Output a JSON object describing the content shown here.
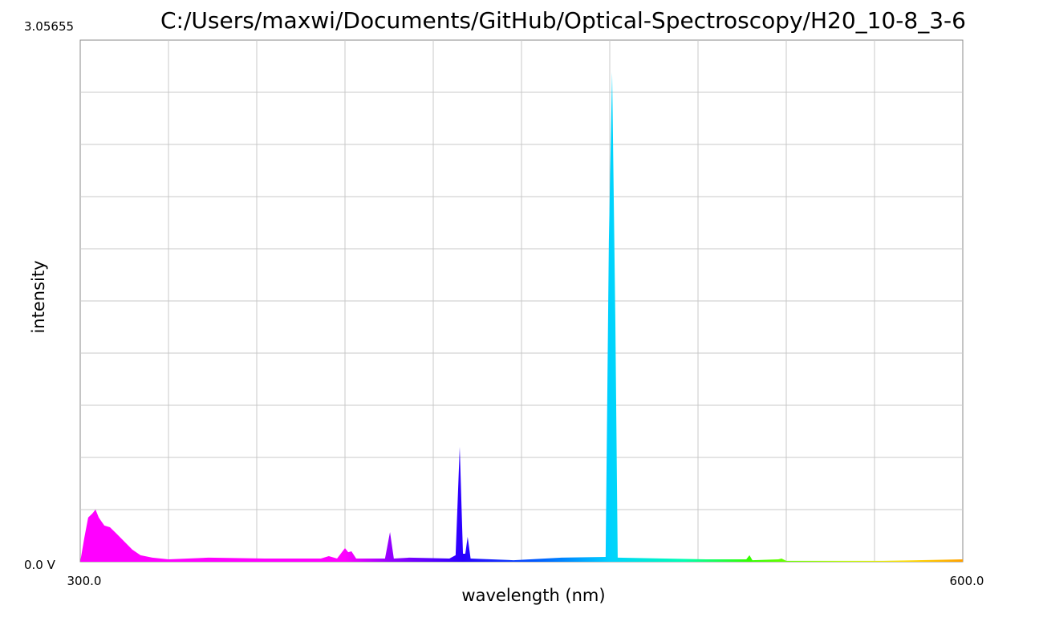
{
  "chart_data": {
    "type": "area",
    "title": "C:/Users/maxwi/Documents/GitHub/Optical-Spectroscopy/H20_10-8_3-6",
    "x_label": "wavelength (nm)",
    "y_label": "intensity",
    "xlim": [
      300,
      600
    ],
    "ylim": [
      0,
      3.05655
    ],
    "xticks": [
      {
        "value": 300,
        "label": "300.0"
      },
      {
        "value": 600,
        "label": "600.0"
      }
    ],
    "yticks": [
      {
        "value": 0,
        "label": "0.0 V"
      },
      {
        "value": 3.05655,
        "label": "3.05655"
      }
    ],
    "xgrid": [
      330,
      360,
      390,
      420,
      450,
      480,
      510,
      540,
      570
    ],
    "ygrid": [
      0.305655,
      0.61131,
      0.916965,
      1.22262,
      1.528275,
      1.83393,
      2.139585,
      2.44524,
      2.750895
    ],
    "grid": true,
    "color": "wavelength",
    "x": [
      300,
      301.4,
      302.7,
      304.1,
      305.2,
      306.3,
      308.2,
      310.1,
      312.3,
      315.0,
      317.7,
      320.5,
      324.5,
      330.0,
      343.6,
      362.7,
      381.8,
      384.5,
      387.3,
      390.0,
      391.1,
      392.2,
      393.8,
      403.6,
      405.3,
      406.6,
      411.8,
      425.5,
      427.6,
      429.0,
      430.1,
      430.9,
      431.7,
      432.7,
      447.3,
      463.6,
      478.6,
      479.7,
      480.8,
      481.9,
      482.7,
      512.7,
      526.4,
      527.5,
      528.5,
      537.3,
      538.4,
      540.0,
      572.7,
      600.0
    ],
    "values": [
      0,
      0.141,
      0.259,
      0.282,
      0.306,
      0.259,
      0.212,
      0.202,
      0.165,
      0.118,
      0.071,
      0.038,
      0.024,
      0.014,
      0.024,
      0.019,
      0.019,
      0.033,
      0.019,
      0.08,
      0.056,
      0.061,
      0.019,
      0.019,
      0.174,
      0.019,
      0.024,
      0.019,
      0.038,
      0.673,
      0.047,
      0.047,
      0.146,
      0.019,
      0.009,
      0.024,
      0.028,
      1.881,
      2.869,
      1.411,
      0.024,
      0.014,
      0.014,
      0.038,
      0.009,
      0.014,
      0.019,
      0.005,
      0.005,
      0.014
    ]
  }
}
